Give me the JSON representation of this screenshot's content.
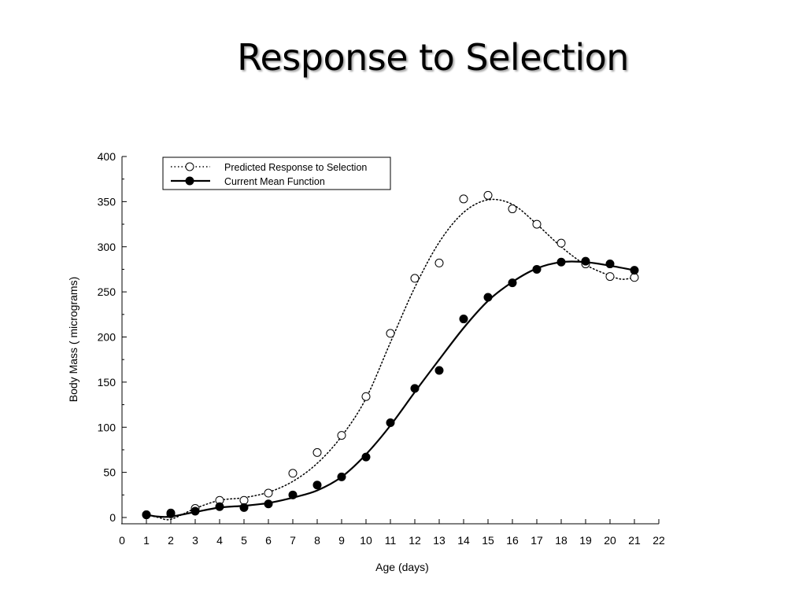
{
  "slide": {
    "title": "Response to Selection"
  },
  "chart_data": {
    "type": "line",
    "xlabel": "Age (days)",
    "ylabel": "Body Mass ( micrograms)",
    "xlim": [
      0,
      22
    ],
    "ylim": [
      0,
      400
    ],
    "x_ticks": [
      0,
      1,
      2,
      3,
      4,
      5,
      6,
      7,
      8,
      9,
      10,
      11,
      12,
      13,
      14,
      15,
      16,
      17,
      18,
      19,
      20,
      21,
      22
    ],
    "y_ticks": [
      0,
      50,
      100,
      150,
      200,
      250,
      300,
      350,
      400
    ],
    "grid": false,
    "legend_position": "top-left",
    "series": [
      {
        "name": "Predicted Response to Selection",
        "style": "dotted",
        "marker": "open-circle",
        "x": [
          1,
          2,
          3,
          4,
          5,
          6,
          7,
          8,
          9,
          10,
          11,
          12,
          13,
          14,
          15,
          16,
          17,
          18,
          19,
          20,
          21
        ],
        "values": [
          3,
          5,
          10,
          19,
          19,
          27,
          49,
          72,
          91,
          134,
          204,
          265,
          282,
          353,
          357,
          342,
          325,
          304,
          281,
          267,
          266
        ],
        "fit_x": [
          1,
          1.5,
          2,
          3,
          4,
          5,
          6,
          7,
          8,
          9,
          10,
          11,
          12,
          13,
          14,
          15,
          16,
          17,
          18,
          19,
          20,
          20.5,
          21
        ],
        "fit_values": [
          3,
          0,
          -2,
          10,
          19,
          22,
          28,
          40,
          60,
          90,
          132,
          194,
          255,
          305,
          338,
          352,
          347,
          325,
          300,
          280,
          268,
          264,
          266
        ]
      },
      {
        "name": "Current Mean Function",
        "style": "solid",
        "marker": "filled-circle",
        "x": [
          1,
          2,
          3,
          4,
          5,
          6,
          7,
          8,
          9,
          10,
          11,
          12,
          13,
          14,
          15,
          16,
          17,
          18,
          19,
          20,
          21
        ],
        "values": [
          3,
          4,
          7,
          12,
          11,
          15,
          25,
          36,
          45,
          67,
          105,
          143,
          163,
          220,
          244,
          260,
          275,
          283,
          284,
          281,
          274
        ],
        "fit_x": [
          1,
          1.5,
          2,
          3,
          4,
          5,
          6,
          7,
          8,
          9,
          10,
          11,
          12,
          13,
          14,
          15,
          16,
          17,
          18,
          19,
          20,
          21
        ],
        "fit_values": [
          3,
          1,
          1,
          6,
          11,
          13,
          16,
          22,
          30,
          45,
          70,
          102,
          139,
          175,
          210,
          240,
          261,
          276,
          283,
          283,
          279,
          274
        ]
      }
    ]
  }
}
